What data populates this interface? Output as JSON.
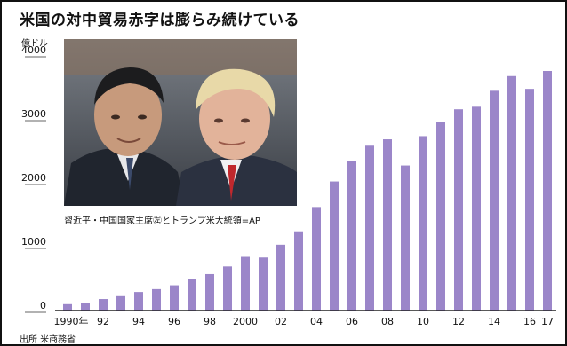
{
  "title": "米国の対中貿易赤字は膨らみ続けている",
  "source": "出所 米商務省",
  "photo_caption": "習近平・中国国家主席㊧とトランプ米大統領=AP",
  "colors": {
    "bar": "#9b86c9",
    "axis": "#222222",
    "frame": "#111111"
  },
  "chart_data": {
    "type": "bar",
    "ylabel": "億ドル",
    "ylim": [
      0,
      4000
    ],
    "y_ticks": [
      "0",
      "1000",
      "2000",
      "3000",
      "4000"
    ],
    "x_tick_labels": [
      "1990年",
      "92",
      "94",
      "96",
      "98",
      "2000",
      "02",
      "04",
      "06",
      "08",
      "10",
      "12",
      "14",
      "16",
      "17"
    ],
    "categories": [
      "1990",
      "1991",
      "1992",
      "1993",
      "1994",
      "1995",
      "1996",
      "1997",
      "1998",
      "1999",
      "2000",
      "2001",
      "2002",
      "2003",
      "2004",
      "2005",
      "2006",
      "2007",
      "2008",
      "2009",
      "2010",
      "2011",
      "2012",
      "2013",
      "2014",
      "2015",
      "2016",
      "2017"
    ],
    "values": [
      100,
      125,
      180,
      225,
      290,
      335,
      395,
      500,
      570,
      690,
      840,
      830,
      1030,
      1240,
      1620,
      2020,
      2340,
      2580,
      2680,
      2270,
      2730,
      2950,
      3150,
      3190,
      3440,
      3670,
      3470,
      3750
    ]
  }
}
